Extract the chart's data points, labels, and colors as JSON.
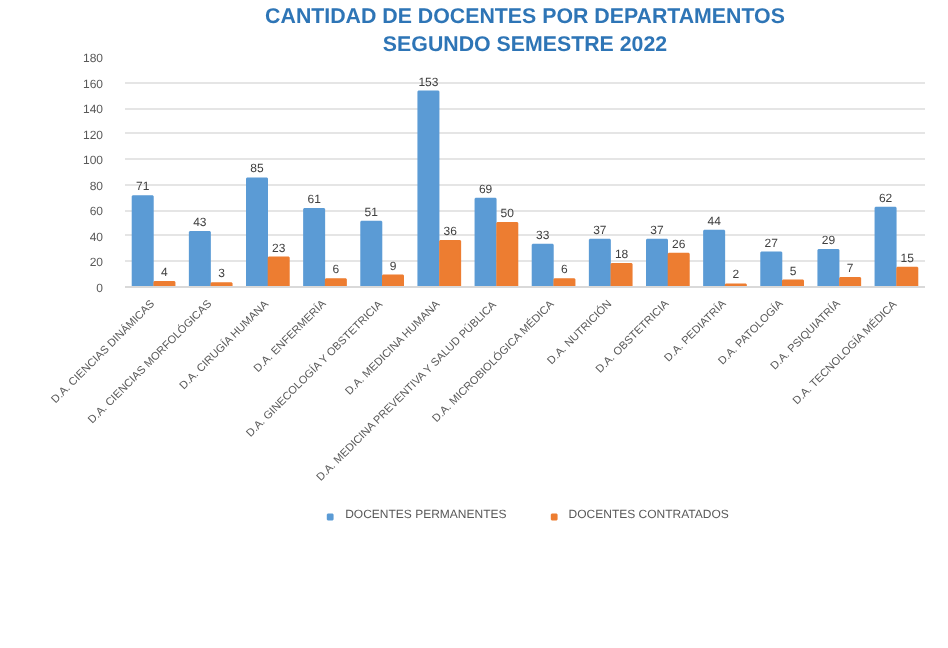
{
  "chart_data": {
    "type": "bar",
    "title": "CANTIDAD DE DOCENTES POR DEPARTAMENTOS",
    "subtitle": "SEGUNDO SEMESTRE 2022",
    "categories": [
      "D.A. CIENCIAS DINÁMICAS",
      "D.A. CIENCIAS MORFOLÓGICAS",
      "D.A. CIRUGÍA HUMANA",
      "D.A. ENFERMERÍA",
      "D.A. GINECOLOGÍA Y OBSTETRICIA",
      "D.A. MEDICINA HUMANA",
      "D.A. MEDICINA PREVENTIVA Y SALUD PÚBLICA",
      "D.A. MICROBIOLÓGICA MÉDICA",
      "D.A. NUTRICIÓN",
      "D.A. OBSTETRICIA",
      "D.A. PEDIATRÍA",
      "D.A. PATOLOGÍA",
      "D.A. PSIQUIATRÍA",
      "D.A. TECNOLOGÍA MÉDICA"
    ],
    "series": [
      {
        "name": "DOCENTES PERMANENTES",
        "color": "#5b9bd5",
        "values": [
          71,
          43,
          85,
          61,
          51,
          153,
          69,
          33,
          37,
          37,
          44,
          27,
          29,
          62
        ]
      },
      {
        "name": "DOCENTES CONTRATADOS",
        "color": "#ed7d31",
        "values": [
          4,
          3,
          23,
          6,
          9,
          36,
          50,
          6,
          18,
          26,
          2,
          5,
          7,
          15
        ]
      }
    ],
    "ylim": [
      0,
      180
    ],
    "yticks": [
      0,
      20,
      40,
      60,
      80,
      100,
      120,
      140,
      160,
      180
    ],
    "grid": "y",
    "legend": "bottom",
    "data_labels": true
  }
}
